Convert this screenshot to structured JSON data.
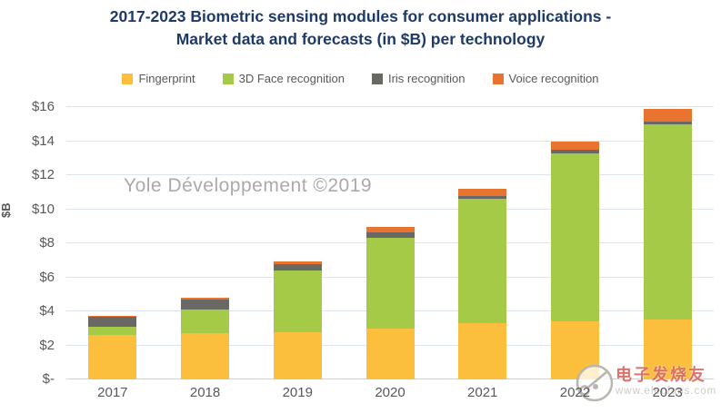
{
  "title": {
    "line1": "2017-2023 Biometric sensing modules for consumer applications -",
    "line2": "Market data and forecasts (in $B) per technology"
  },
  "watermarks": {
    "yole": "Yole Développement ©2019",
    "elecfans_name": "电子发烧友",
    "elecfans_url": "www.elecfans.com"
  },
  "chart_data": {
    "type": "bar",
    "stacked": true,
    "title": "2017-2023 Biometric sensing modules for consumer applications - Market data and forecasts (in $B) per technology",
    "categories": [
      "2017",
      "2018",
      "2019",
      "2020",
      "2021",
      "2022",
      "2023"
    ],
    "series": [
      {
        "name": "Fingerprint",
        "color": "#FBBE3D",
        "values": [
          2.6,
          2.7,
          2.8,
          3.0,
          3.3,
          3.4,
          3.5
        ]
      },
      {
        "name": "3D Face recognition",
        "color": "#A4CA47",
        "values": [
          0.5,
          1.4,
          3.6,
          5.3,
          7.3,
          9.9,
          11.5
        ]
      },
      {
        "name": "Iris recognition",
        "color": "#6A6864",
        "values": [
          0.6,
          0.6,
          0.4,
          0.35,
          0.2,
          0.2,
          0.15
        ]
      },
      {
        "name": "Voice recognition",
        "color": "#E8742F",
        "values": [
          0.05,
          0.1,
          0.15,
          0.3,
          0.4,
          0.45,
          0.75
        ]
      }
    ],
    "totals": [
      3.75,
      4.8,
      6.95,
      8.95,
      11.2,
      13.95,
      15.9
    ],
    "xlabel": "",
    "ylabel": "$B",
    "ylim": [
      0,
      16
    ],
    "y_tick_step": 2,
    "y_ticks": [
      "$-",
      "$2",
      "$4",
      "$6",
      "$8",
      "$10",
      "$12",
      "$14",
      "$16"
    ],
    "grid": true,
    "legend_position": "top"
  }
}
